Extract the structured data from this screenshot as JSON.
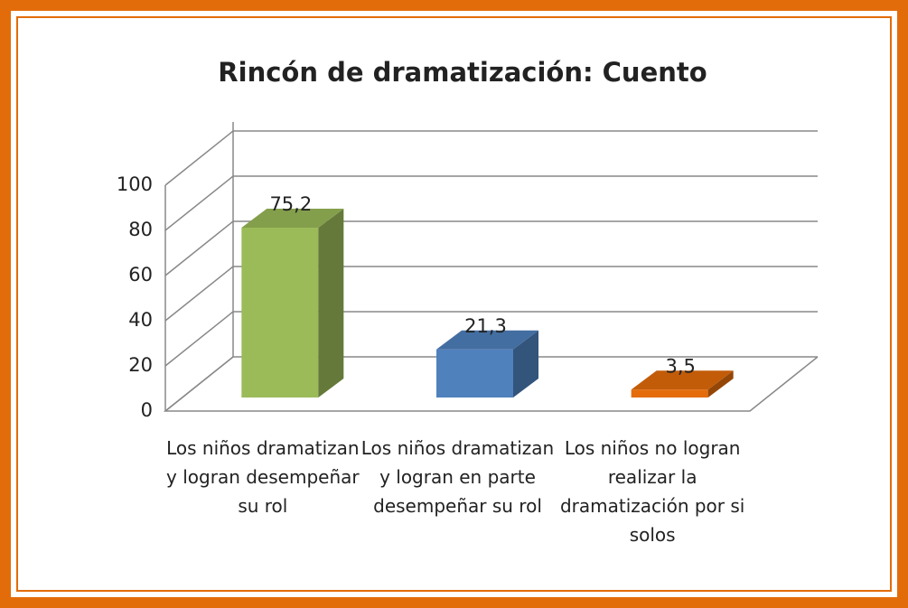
{
  "chart_data": {
    "type": "bar3d",
    "title": "Rincón de dramatización: Cuento",
    "categories": [
      "Los niños dramatizan y logran desempeñar su rol",
      "Los niños dramatizan y logran en parte desempeñar su rol",
      "Los niños no logran realizar la dramatización por si solos"
    ],
    "values": [
      75.2,
      21.3,
      3.5
    ],
    "value_labels": [
      "75,2",
      "21,3",
      "3,5"
    ],
    "colors": [
      "#9bbb59",
      "#4f81bd",
      "#e46c0a"
    ],
    "ylim": [
      0,
      100
    ],
    "yticks": [
      0,
      20,
      40,
      60,
      80,
      100
    ],
    "grid": true
  }
}
